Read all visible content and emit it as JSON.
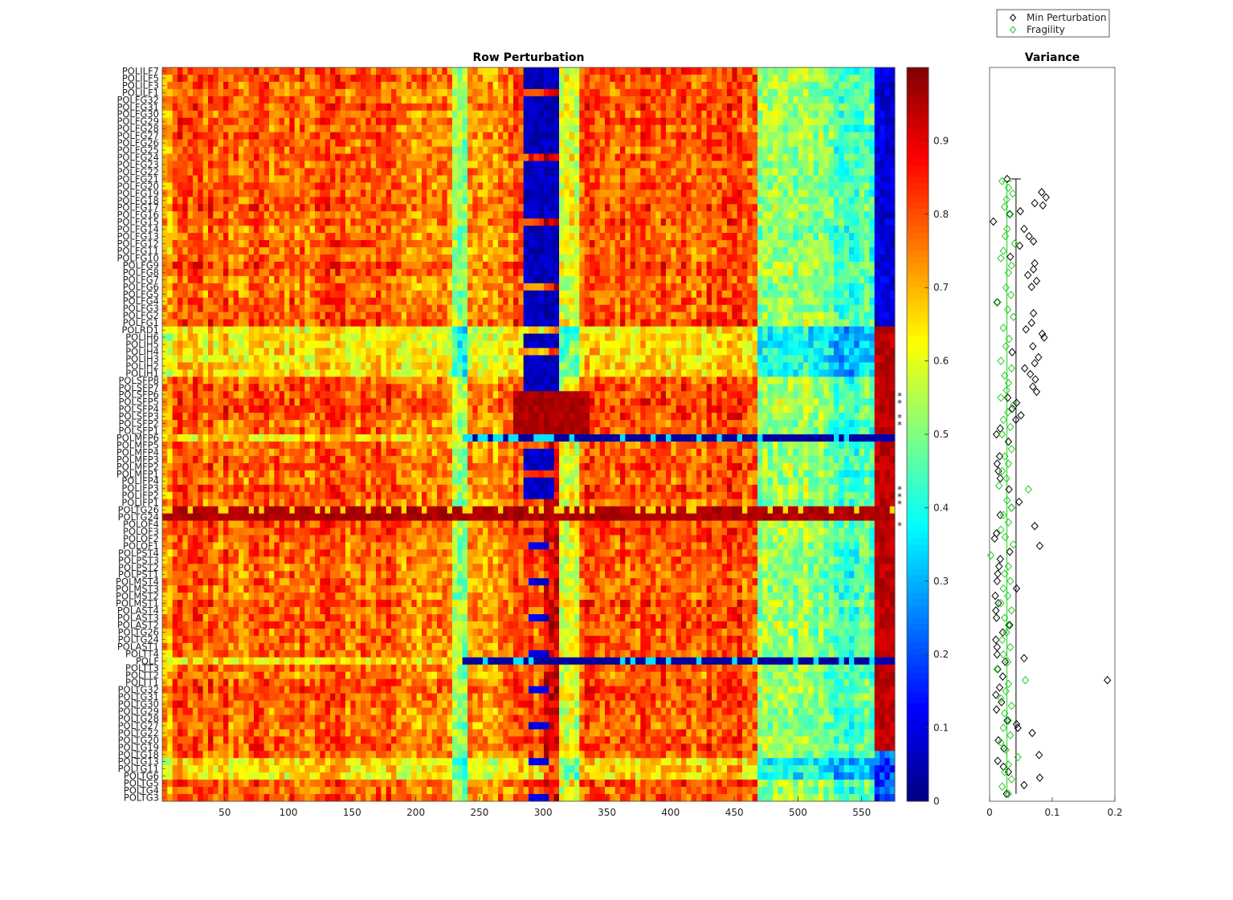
{
  "chart_data": [
    {
      "type": "heatmap",
      "title": "Row Perturbation",
      "x_ticks": [
        50,
        100,
        150,
        200,
        250,
        300,
        350,
        400,
        450,
        500,
        550
      ],
      "xlim": [
        1,
        576
      ],
      "colorbar": {
        "min": 0,
        "max": 1,
        "ticks": [
          0,
          0.1,
          0.2,
          0.3,
          0.4,
          0.5,
          0.6,
          0.7,
          0.8,
          0.9
        ],
        "colormap": "jet"
      },
      "rows": [
        "POLILF7",
        "POLILF5",
        "POLILF3",
        "POLILF1",
        "POLFG32",
        "POLFG31",
        "POLFG30",
        "POLFG29",
        "POLFG28",
        "POLFG27",
        "POLFG26",
        "POLFG25",
        "POLFG24",
        "POLFG23",
        "POLFG22",
        "POLFG21",
        "POLFG20",
        "POLFG19",
        "POLFG18",
        "POLFG17",
        "POLFG16",
        "POLFG15",
        "POLFG14",
        "POLFG13",
        "POLFG12",
        "POLFG11",
        "POLFG10",
        "POLFG9",
        "POLFG8",
        "POLFG7",
        "POLFG6",
        "POLFG5",
        "POLFG4",
        "POLFG3",
        "POLFG2",
        "POLFG1",
        "POLRD1",
        "POLIH6",
        "POLIH5",
        "POLIH4",
        "POLIH3",
        "POLIH2",
        "POLIH1",
        "POLSFP8",
        "POLSFP7",
        "POLSFP6",
        "POLSFP5",
        "POLSFP4",
        "POLSFP3",
        "POLSFP2",
        "POLSFP1",
        "POLMFP6",
        "POLMFP5",
        "POLMFP4",
        "POLMFP3",
        "POLMFP2",
        "POLMFP1",
        "POLIFP4",
        "POLIFP3",
        "POLIFP2",
        "POLIFP1",
        "POLTG26",
        "POLTG24",
        "POLOF4",
        "POLOF3",
        "POLOF2",
        "POLOF1",
        "POLPST4",
        "POLPST3",
        "POLPST2",
        "POLPST1",
        "POLMST4",
        "POLMST3",
        "POLMST2",
        "POLMST1",
        "POLAST4",
        "POLAST3",
        "POLAST2",
        "POLTG26",
        "POLTG24",
        "POLAST1",
        "POLTT4",
        "POLF",
        "POLTT3",
        "POLTT2",
        "POLTT1",
        "POLTG32",
        "POLTG31",
        "POLTG30",
        "POLTG29",
        "POLTG28",
        "POLTG27",
        "POLTG22",
        "POLTG20",
        "POLTG19",
        "POLTG18",
        "POLTG13",
        "POLTG11",
        "POLTG6",
        "POLTG5",
        "POLTG4",
        "POLTG3"
      ],
      "highlighted_rows": {
        "orange": [
          45,
          46,
          58,
          59,
          60
        ],
        "red": [
          48,
          49,
          63
        ]
      },
      "colors": {
        "orange": "#ff8c00",
        "red": "#ff0000"
      }
    },
    {
      "type": "scatter",
      "title": "Variance",
      "xlim": [
        0,
        0.2
      ],
      "x_ticks": [
        "0",
        "0.1",
        "0.2"
      ],
      "legend": {
        "position": "top-right",
        "entries": [
          "Min Perturbation",
          "Fragility"
        ]
      },
      "series": [
        {
          "name": "Min Perturbation",
          "color": "#000000",
          "marker": "diamond",
          "points": [
            [
              0.028,
              0.848
            ],
            [
              0.083,
              0.83
            ],
            [
              0.09,
              0.823
            ],
            [
              0.072,
              0.815
            ],
            [
              0.049,
              0.804
            ],
            [
              0.006,
              0.79
            ],
            [
              0.085,
              0.812
            ],
            [
              0.032,
              0.8
            ],
            [
              0.063,
              0.77
            ],
            [
              0.07,
              0.763
            ],
            [
              0.055,
              0.78
            ],
            [
              0.048,
              0.757
            ],
            [
              0.033,
              0.742
            ],
            [
              0.072,
              0.733
            ],
            [
              0.07,
              0.725
            ],
            [
              0.061,
              0.717
            ],
            [
              0.075,
              0.709
            ],
            [
              0.067,
              0.701
            ],
            [
              0.012,
              0.68
            ],
            [
              0.07,
              0.665
            ],
            [
              0.067,
              0.652
            ],
            [
              0.058,
              0.643
            ],
            [
              0.084,
              0.637
            ],
            [
              0.087,
              0.632
            ],
            [
              0.069,
              0.62
            ],
            [
              0.036,
              0.612
            ],
            [
              0.078,
              0.605
            ],
            [
              0.072,
              0.597
            ],
            [
              0.056,
              0.59
            ],
            [
              0.065,
              0.582
            ],
            [
              0.073,
              0.575
            ],
            [
              0.069,
              0.565
            ],
            [
              0.075,
              0.558
            ],
            [
              0.029,
              0.55
            ],
            [
              0.043,
              0.543
            ],
            [
              0.036,
              0.535
            ],
            [
              0.05,
              0.526
            ],
            [
              0.042,
              0.52
            ],
            [
              0.017,
              0.508
            ],
            [
              0.011,
              0.5
            ],
            [
              0.03,
              0.49
            ],
            [
              0.016,
              0.47
            ],
            [
              0.012,
              0.46
            ],
            [
              0.014,
              0.45
            ],
            [
              0.017,
              0.44
            ],
            [
              0.031,
              0.425
            ],
            [
              0.047,
              0.408
            ],
            [
              0.035,
              0.4
            ],
            [
              0.017,
              0.39
            ],
            [
              0.072,
              0.375
            ],
            [
              0.011,
              0.365
            ],
            [
              0.008,
              0.358
            ],
            [
              0.08,
              0.348
            ],
            [
              0.032,
              0.34
            ],
            [
              0.017,
              0.33
            ],
            [
              0.015,
              0.32
            ],
            [
              0.013,
              0.31
            ],
            [
              0.012,
              0.3
            ],
            [
              0.043,
              0.29
            ],
            [
              0.009,
              0.28
            ],
            [
              0.014,
              0.27
            ],
            [
              0.01,
              0.26
            ],
            [
              0.011,
              0.25
            ],
            [
              0.032,
              0.24
            ],
            [
              0.021,
              0.23
            ],
            [
              0.01,
              0.22
            ],
            [
              0.012,
              0.21
            ],
            [
              0.012,
              0.2
            ],
            [
              0.055,
              0.195
            ],
            [
              0.025,
              0.19
            ],
            [
              0.013,
              0.18
            ],
            [
              0.021,
              0.17
            ],
            [
              0.188,
              0.165
            ],
            [
              0.016,
              0.155
            ],
            [
              0.01,
              0.145
            ],
            [
              0.019,
              0.135
            ],
            [
              0.011,
              0.125
            ],
            [
              0.028,
              0.11
            ],
            [
              0.043,
              0.105
            ],
            [
              0.045,
              0.1
            ],
            [
              0.068,
              0.093
            ],
            [
              0.014,
              0.083
            ],
            [
              0.023,
              0.072
            ],
            [
              0.079,
              0.063
            ],
            [
              0.013,
              0.055
            ],
            [
              0.022,
              0.047
            ],
            [
              0.03,
              0.04
            ],
            [
              0.08,
              0.032
            ],
            [
              0.055,
              0.022
            ],
            [
              0.027,
              0.01
            ]
          ]
        },
        {
          "name": "Fragility",
          "color": "#22cc22",
          "marker": "diamond",
          "points": [
            [
              0.02,
              0.845
            ],
            [
              0.03,
              0.836
            ],
            [
              0.037,
              0.828
            ],
            [
              0.027,
              0.82
            ],
            [
              0.024,
              0.81
            ],
            [
              0.033,
              0.8
            ],
            [
              0.028,
              0.78
            ],
            [
              0.025,
              0.77
            ],
            [
              0.04,
              0.76
            ],
            [
              0.022,
              0.75
            ],
            [
              0.018,
              0.74
            ],
            [
              0.035,
              0.73
            ],
            [
              0.03,
              0.72
            ],
            [
              0.026,
              0.7
            ],
            [
              0.034,
              0.69
            ],
            [
              0.013,
              0.68
            ],
            [
              0.029,
              0.67
            ],
            [
              0.038,
              0.66
            ],
            [
              0.022,
              0.645
            ],
            [
              0.031,
              0.63
            ],
            [
              0.026,
              0.62
            ],
            [
              0.018,
              0.6
            ],
            [
              0.035,
              0.59
            ],
            [
              0.024,
              0.58
            ],
            [
              0.03,
              0.57
            ],
            [
              0.027,
              0.56
            ],
            [
              0.018,
              0.55
            ],
            [
              0.038,
              0.54
            ],
            [
              0.029,
              0.53
            ],
            [
              0.022,
              0.52
            ],
            [
              0.033,
              0.51
            ],
            [
              0.02,
              0.5
            ],
            [
              0.035,
              0.48
            ],
            [
              0.024,
              0.47
            ],
            [
              0.03,
              0.46
            ],
            [
              0.02,
              0.45
            ],
            [
              0.027,
              0.44
            ],
            [
              0.015,
              0.43
            ],
            [
              0.062,
              0.425
            ],
            [
              0.028,
              0.41
            ],
            [
              0.035,
              0.4
            ],
            [
              0.022,
              0.39
            ],
            [
              0.03,
              0.38
            ],
            [
              0.018,
              0.37
            ],
            [
              0.025,
              0.36
            ],
            [
              0.038,
              0.35
            ],
            [
              0.002,
              0.335
            ],
            [
              0.03,
              0.32
            ],
            [
              0.024,
              0.31
            ],
            [
              0.033,
              0.3
            ],
            [
              0.022,
              0.29
            ],
            [
              0.029,
              0.28
            ],
            [
              0.018,
              0.27
            ],
            [
              0.035,
              0.26
            ],
            [
              0.024,
              0.25
            ],
            [
              0.03,
              0.24
            ],
            [
              0.027,
              0.23
            ],
            [
              0.02,
              0.22
            ],
            [
              0.033,
              0.21
            ],
            [
              0.022,
              0.2
            ],
            [
              0.029,
              0.19
            ],
            [
              0.012,
              0.18
            ],
            [
              0.057,
              0.165
            ],
            [
              0.03,
              0.16
            ],
            [
              0.026,
              0.15
            ],
            [
              0.018,
              0.14
            ],
            [
              0.035,
              0.13
            ],
            [
              0.024,
              0.12
            ],
            [
              0.03,
              0.11
            ],
            [
              0.022,
              0.1
            ],
            [
              0.033,
              0.09
            ],
            [
              0.018,
              0.08
            ],
            [
              0.026,
              0.07
            ],
            [
              0.045,
              0.06
            ],
            [
              0.03,
              0.05
            ],
            [
              0.024,
              0.04
            ],
            [
              0.035,
              0.03
            ],
            [
              0.02,
              0.02
            ],
            [
              0.03,
              0.01
            ]
          ]
        }
      ]
    }
  ]
}
